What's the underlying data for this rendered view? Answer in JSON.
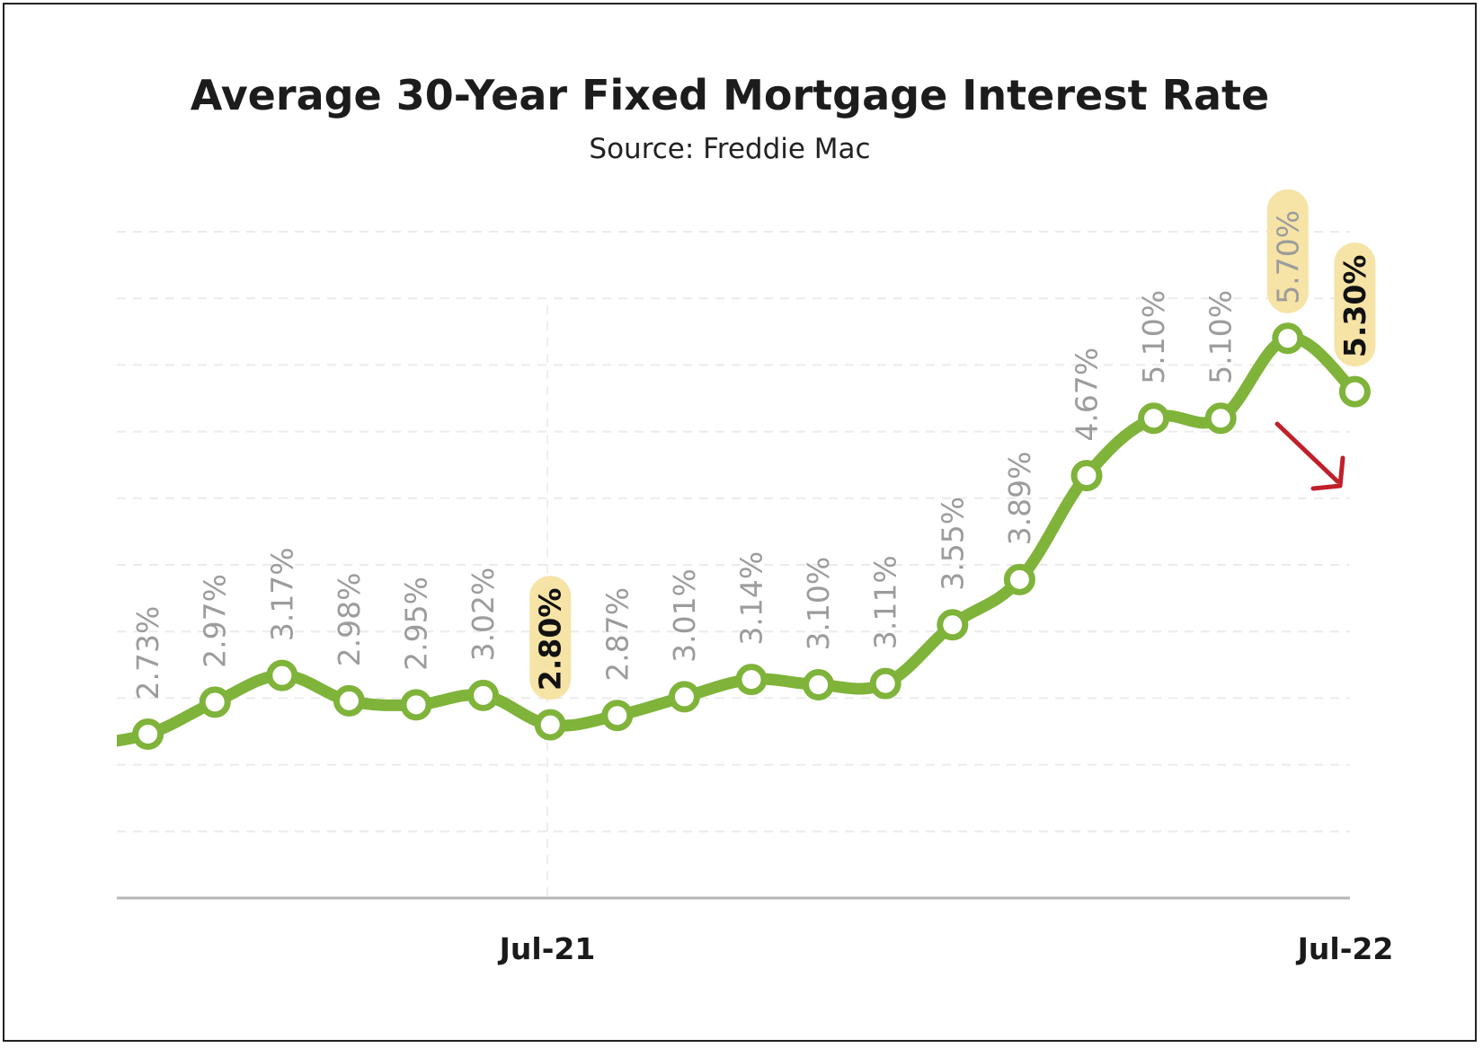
{
  "chart_data": {
    "type": "line",
    "title": "Average 30-Year Fixed Mortgage Interest Rate",
    "subtitle": "Source: Freddie Mac",
    "x_tick_labels": [
      "Jul-21",
      "Jul-22"
    ],
    "series": [
      {
        "values": [
          2.65,
          2.73,
          2.97,
          3.17,
          2.98,
          2.95,
          3.02,
          2.8,
          2.87,
          3.01,
          3.14,
          3.1,
          3.11,
          3.55,
          3.89,
          4.67,
          5.1,
          5.1,
          5.7,
          5.3
        ],
        "labels": [
          "",
          "2.73%",
          "2.97%",
          "3.17%",
          "2.98%",
          "2.95%",
          "3.02%",
          "2.80%",
          "2.87%",
          "3.01%",
          "3.14%",
          "3.10%",
          "3.11%",
          "3.55%",
          "3.89%",
          "4.67%",
          "5.10%",
          "5.10%",
          "5.70%",
          "5.30%"
        ]
      }
    ],
    "highlighted_labels": [
      {
        "label": "2.80%",
        "style": "bold"
      },
      {
        "label": "5.70%",
        "style": "normal"
      },
      {
        "label": "5.30%",
        "style": "bold"
      }
    ],
    "ylim": [
      1.5,
      6.5
    ],
    "grid": "horizontal-dashed",
    "line_color": "#7fb33a",
    "highlight_color": "#f6e3a6",
    "annotation": {
      "type": "arrow",
      "direction": "down-right",
      "color": "#c0202a"
    }
  }
}
